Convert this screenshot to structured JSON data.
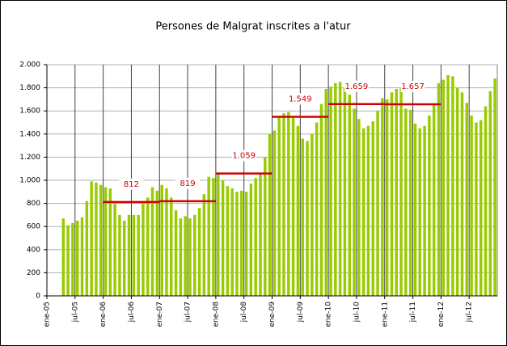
{
  "chart_data": {
    "type": "bar",
    "title": "Persones de Malgrat inscrites a l'atur",
    "categories": [
      "ene-05",
      null,
      null,
      null,
      null,
      null,
      "jul-05",
      null,
      null,
      null,
      null,
      null,
      "ene-06",
      null,
      null,
      null,
      null,
      null,
      "jul-06",
      null,
      null,
      null,
      null,
      null,
      "ene-07",
      null,
      null,
      null,
      null,
      null,
      "jul-07",
      null,
      null,
      null,
      null,
      null,
      "ene-08",
      null,
      null,
      null,
      null,
      null,
      "jul-08",
      null,
      null,
      null,
      null,
      null,
      "ene-09",
      null,
      null,
      null,
      null,
      null,
      "jul-09",
      null,
      null,
      null,
      null,
      null,
      "ene-10",
      null,
      null,
      null,
      null,
      null,
      "jul-10",
      null,
      null,
      null,
      null,
      null,
      "ene-11",
      null,
      null,
      null,
      null,
      null,
      "jul-11",
      null,
      null,
      null,
      null,
      null,
      "ene-12",
      null,
      null,
      null,
      null,
      null,
      "jul-12",
      null,
      null,
      null,
      null,
      null
    ],
    "values": [
      null,
      null,
      null,
      670,
      610,
      630,
      650,
      680,
      820,
      990,
      980,
      960,
      940,
      930,
      800,
      700,
      650,
      700,
      700,
      700,
      800,
      850,
      940,
      910,
      960,
      930,
      850,
      740,
      670,
      690,
      670,
      700,
      760,
      880,
      1030,
      1020,
      1060,
      1000,
      950,
      930,
      900,
      910,
      900,
      970,
      1020,
      1050,
      1200,
      1400,
      1430,
      1550,
      1580,
      1590,
      1540,
      1470,
      1360,
      1340,
      1400,
      1500,
      1660,
      1790,
      1810,
      1840,
      1850,
      1800,
      1740,
      1620,
      1530,
      1450,
      1470,
      1510,
      1600,
      1710,
      1700,
      1760,
      1790,
      1800,
      1620,
      1610,
      1490,
      1450,
      1470,
      1560,
      1660,
      1840,
      1870,
      1910,
      1900,
      1800,
      1760,
      1670,
      1560,
      1500,
      1520,
      1640,
      1770,
      1880
    ],
    "color": "#99cc00",
    "ylim": [
      0,
      2000
    ],
    "yticks": [
      0,
      200,
      400,
      600,
      800,
      {
        "value": 1000,
        "label": "1.000"
      },
      {
        "value": 1200,
        "label": "1.200"
      },
      {
        "value": 1400,
        "label": "1.400"
      },
      {
        "value": 1600,
        "label": "1.600"
      },
      {
        "value": 1800,
        "label": "1.800"
      },
      {
        "value": 2000,
        "label": "2.000"
      }
    ],
    "grid": true,
    "annotations": [
      {
        "value": 812,
        "label": "812",
        "from": "ene-06",
        "to": "ene-07",
        "color": "#cc0000"
      },
      {
        "value": 819,
        "label": "819",
        "from": "ene-07",
        "to": "ene-08",
        "color": "#cc0000"
      },
      {
        "value": 1059,
        "label": "1.059",
        "from": "ene-08",
        "to": "ene-09",
        "color": "#cc0000"
      },
      {
        "value": 1549,
        "label": "1.549",
        "from": "ene-09",
        "to": "ene-10",
        "color": "#cc0000"
      },
      {
        "value": 1659,
        "label": "1.659",
        "from": "ene-10",
        "to": "ene-11",
        "color": "#cc0000"
      },
      {
        "value": 1657,
        "label": "1.657",
        "from": "ene-11",
        "to": "ene-12",
        "color": "#cc0000"
      }
    ]
  }
}
